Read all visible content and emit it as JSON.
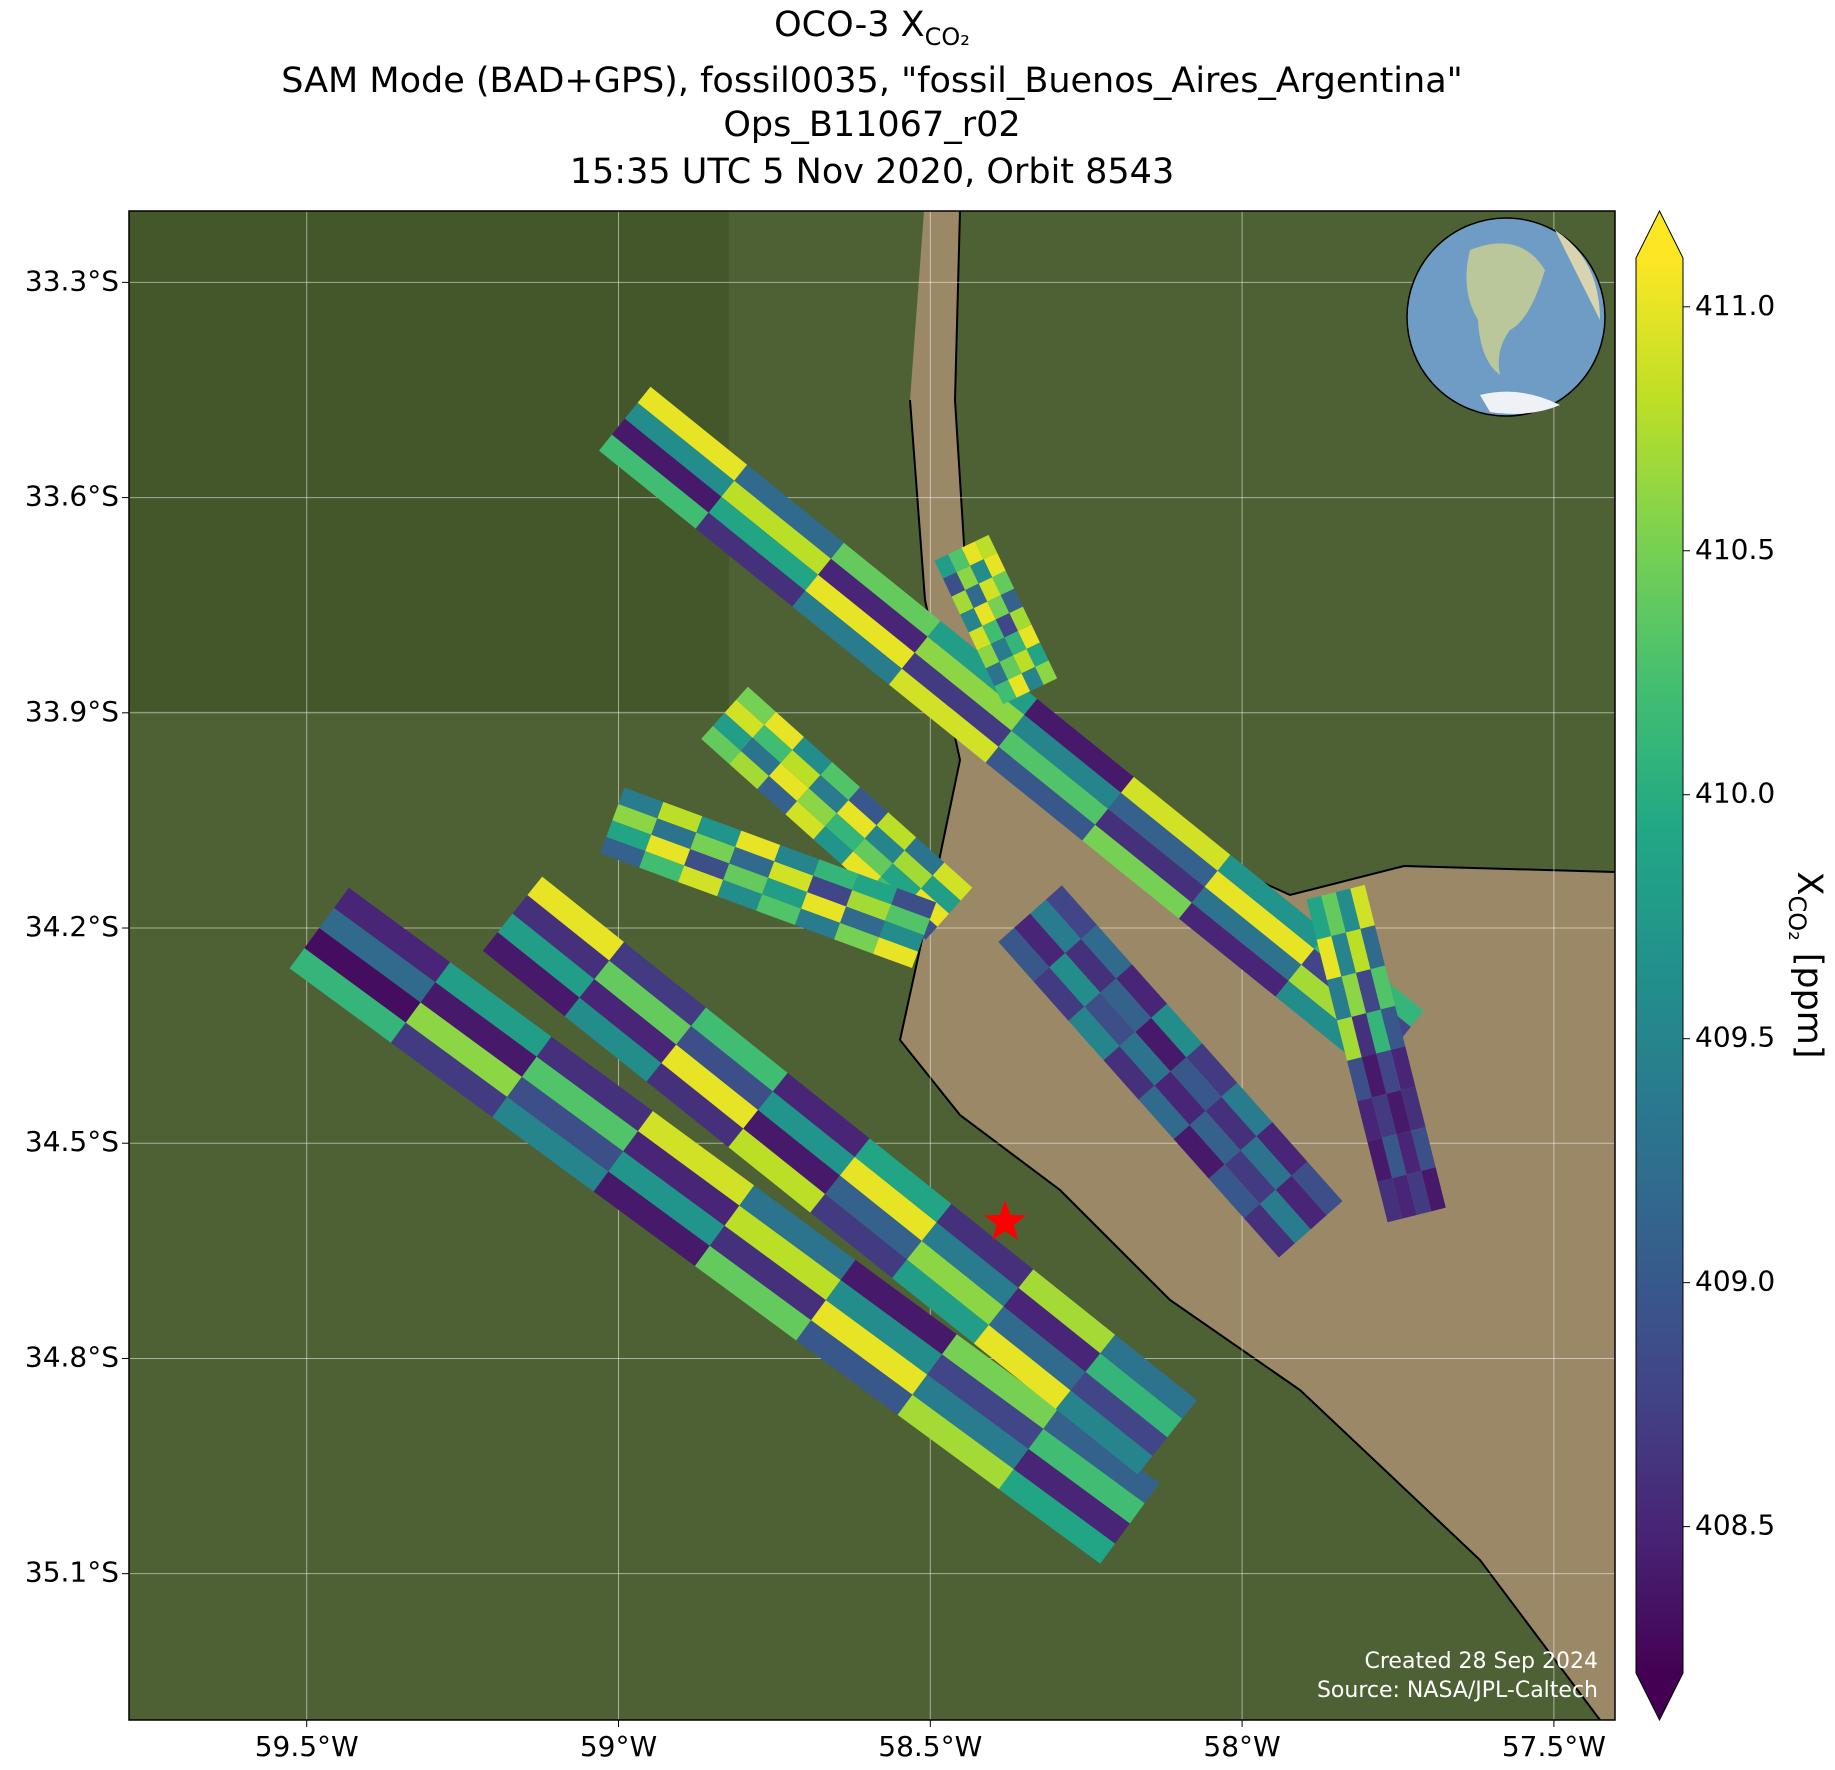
{
  "chart_data": {
    "type": "map",
    "title": "OCO-3 X",
    "title_subscript": "CO₂",
    "subtitle_lines": [
      "SAM Mode (BAD+GPS), fossil0035, \"fossil_Buenos_Aires_Argentina\"",
      "Ops_B11067_r02",
      "15:35 UTC 5 Nov 2020, Orbit 8543"
    ],
    "xlim": [
      -59.785,
      -57.402
    ],
    "ylim": [
      -35.304,
      -33.2005
    ],
    "xticks": [
      {
        "value": -59.5,
        "label": "59.5°W"
      },
      {
        "value": -59,
        "label": "59°W"
      },
      {
        "value": -58.5,
        "label": "58.5°W"
      },
      {
        "value": -58,
        "label": "58°W"
      },
      {
        "value": -57.5,
        "label": "57.5°W"
      }
    ],
    "yticks": [
      {
        "value": -33.3,
        "label": "33.3°S"
      },
      {
        "value": -33.6,
        "label": "33.6°S"
      },
      {
        "value": -33.9,
        "label": "33.9°S"
      },
      {
        "value": -34.2,
        "label": "34.2°S"
      },
      {
        "value": -34.5,
        "label": "34.5°S"
      },
      {
        "value": -34.8,
        "label": "34.8°S"
      },
      {
        "value": -35.1,
        "label": "35.1°S"
      }
    ],
    "grid": true,
    "colorbar": {
      "label": "X",
      "label_subscript": "CO₂",
      "label_unit": "[ppm]",
      "colormap": "viridis",
      "extend": "both",
      "clim": [
        408.2,
        411.1
      ],
      "ticks": [
        {
          "value": 408.5,
          "label": "408.5"
        },
        {
          "value": 409,
          "label": "409.0"
        },
        {
          "value": 409.5,
          "label": "409.5"
        },
        {
          "value": 410,
          "label": "410.0"
        },
        {
          "value": 410.5,
          "label": "410.5"
        },
        {
          "value": 411,
          "label": "411.0"
        }
      ]
    },
    "target": {
      "lon": -58.38,
      "lat": -34.61,
      "color": "#ff0000"
    },
    "swaths": [
      {
        "start": [
          -58.99,
          -33.49
        ],
        "end": [
          -57.75,
          -34.36
        ],
        "values": [
          [
            411.0,
            409.6,
            408.4,
            410.2
          ],
          [
            409.2,
            410.8,
            409.9,
            408.6
          ],
          [
            410.4,
            408.5,
            411.0,
            409.4
          ],
          [
            409.8,
            410.6,
            408.7,
            410.9
          ],
          [
            408.4,
            409.5,
            410.3,
            409.0
          ],
          [
            410.9,
            409.1,
            408.6,
            410.5
          ],
          [
            409.7,
            411.0,
            409.3,
            408.5
          ],
          [
            410.1,
            408.8,
            410.7,
            409.6
          ]
        ]
      },
      {
        "start": [
          -58.45,
          -33.67
        ],
        "end": [
          -58.34,
          -33.87
        ],
        "values": [
          [
            410.8,
            411.0,
            410.3,
            409.8
          ],
          [
            411.0,
            409.6,
            410.6,
            408.9
          ],
          [
            410.4,
            410.9,
            409.2,
            410.7
          ],
          [
            409.1,
            410.5,
            411.0,
            409.5
          ],
          [
            410.7,
            408.8,
            410.2,
            410.9
          ],
          [
            411.0,
            410.1,
            409.4,
            410.6
          ],
          [
            409.9,
            410.8,
            410.4,
            409.3
          ],
          [
            410.6,
            409.5,
            411.0,
            410.2
          ]
        ]
      },
      {
        "start": [
          -58.83,
          -33.9
        ],
        "end": [
          -58.47,
          -34.18
        ],
        "values": [
          [
            410.5,
            410.9,
            409.8,
            410.4
          ],
          [
            411.0,
            410.2,
            409.3,
            410.7
          ],
          [
            409.6,
            410.8,
            411.0,
            409.1
          ],
          [
            410.3,
            409.4,
            410.6,
            410.9
          ],
          [
            409.0,
            411.0,
            410.1,
            409.7
          ],
          [
            410.8,
            409.5,
            410.4,
            411.0
          ],
          [
            409.3,
            410.7,
            409.9,
            410.2
          ],
          [
            410.9,
            409.8,
            411.0,
            408.9
          ]
        ]
      },
      {
        "start": [
          -59.01,
          -34.05
        ],
        "end": [
          -58.51,
          -34.21
        ],
        "values": [
          [
            409.4,
            410.6,
            409.9,
            409.1
          ],
          [
            410.8,
            409.3,
            411.0,
            410.2
          ],
          [
            409.7,
            410.5,
            408.9,
            410.9
          ],
          [
            411.0,
            409.2,
            410.4,
            409.6
          ],
          [
            409.5,
            410.9,
            409.8,
            410.3
          ],
          [
            410.1,
            408.8,
            411.0,
            409.4
          ],
          [
            409.9,
            410.7,
            409.2,
            410.5
          ],
          [
            408.9,
            410.3,
            409.6,
            411.0
          ]
        ]
      },
      {
        "start": [
          -59.48,
          -34.2
        ],
        "end": [
          -58.18,
          -35.03
        ],
        "values": [
          [
            408.5,
            409.2,
            408.3,
            410.1
          ],
          [
            409.8,
            408.4,
            410.6,
            408.7
          ],
          [
            408.6,
            410.3,
            408.9,
            409.5
          ],
          [
            410.9,
            408.5,
            409.7,
            408.4
          ],
          [
            409.3,
            410.8,
            408.6,
            410.4
          ],
          [
            408.4,
            409.6,
            411.0,
            409.0
          ],
          [
            410.5,
            408.8,
            409.4,
            410.7
          ],
          [
            409.1,
            410.2,
            408.5,
            409.9
          ]
        ]
      },
      {
        "start": [
          -59.17,
          -34.18
        ],
        "end": [
          -58.12,
          -34.91
        ],
        "values": [
          [
            411.0,
            408.6,
            409.8,
            408.4
          ],
          [
            408.7,
            410.4,
            408.5,
            409.6
          ],
          [
            410.2,
            408.9,
            411.0,
            408.6
          ],
          [
            408.5,
            409.7,
            408.4,
            410.8
          ],
          [
            409.9,
            411.0,
            409.1,
            408.7
          ],
          [
            408.6,
            409.4,
            410.6,
            409.8
          ],
          [
            410.7,
            408.5,
            409.2,
            411.0
          ],
          [
            409.3,
            410.1,
            408.8,
            409.5
          ]
        ]
      },
      {
        "start": [
          -58.34,
          -34.18
        ],
        "end": [
          -57.89,
          -34.62
        ],
        "values": [
          [
            408.8,
            409.4,
            408.5,
            409.0
          ],
          [
            409.2,
            408.6,
            409.6,
            408.7
          ],
          [
            408.5,
            409.1,
            408.9,
            409.5
          ],
          [
            409.6,
            408.4,
            409.3,
            408.6
          ],
          [
            408.7,
            409.0,
            408.5,
            409.2
          ],
          [
            409.4,
            408.6,
            409.1,
            408.4
          ],
          [
            408.5,
            409.3,
            408.7,
            409.0
          ],
          [
            408.9,
            408.5,
            409.4,
            408.6
          ]
        ]
      },
      {
        "start": [
          -57.85,
          -34.15
        ],
        "end": [
          -57.72,
          -34.6
        ],
        "values": [
          [
            410.9,
            409.6,
            410.4,
            409.9
          ],
          [
            409.2,
            410.8,
            409.5,
            411.0
          ],
          [
            410.3,
            408.8,
            410.6,
            409.4
          ],
          [
            409.0,
            410.1,
            408.6,
            410.7
          ],
          [
            408.5,
            408.8,
            408.4,
            408.9
          ],
          [
            408.6,
            408.4,
            408.7,
            408.5
          ],
          [
            408.9,
            408.5,
            409.0,
            408.4
          ],
          [
            408.4,
            408.7,
            408.5,
            408.6
          ]
        ]
      }
    ],
    "footnotes": [
      "Created 28 Sep 2024",
      "Source: NASA/JPL-Caltech"
    ]
  }
}
